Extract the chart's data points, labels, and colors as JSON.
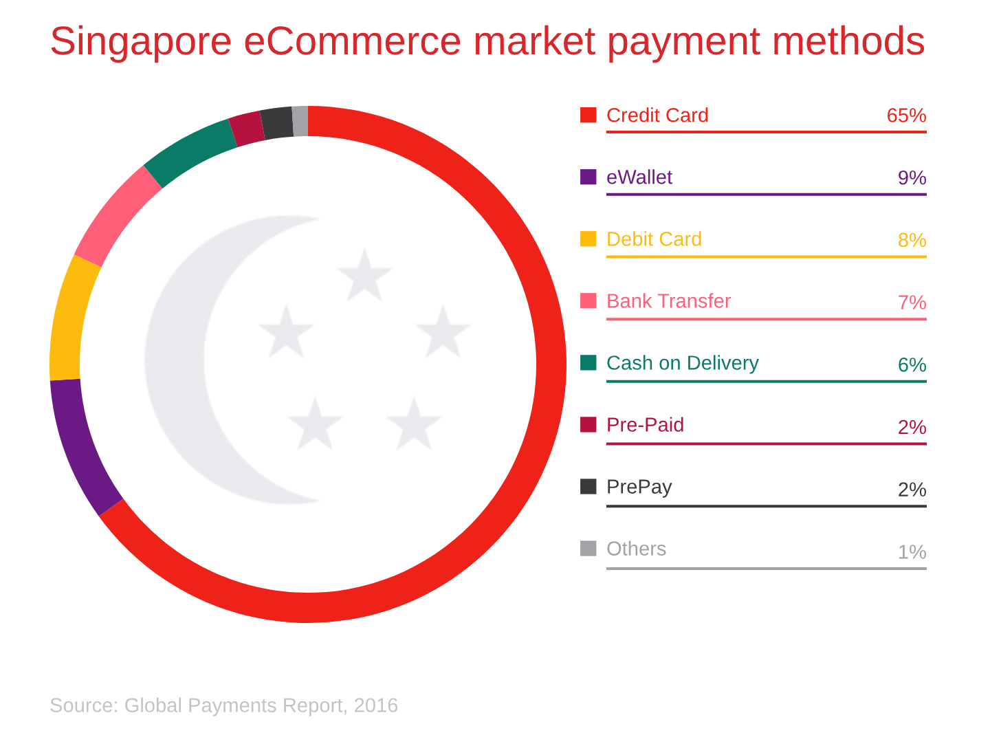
{
  "chart_data": {
    "type": "donut",
    "title": "Singapore eCommerce market payment methods",
    "categories": [
      "Credit Card",
      "eWallet",
      "Debit Card",
      "Bank Transfer",
      "Cash on Delivery",
      "Pre-Paid",
      "PrePay",
      "Others"
    ],
    "values": [
      65,
      9,
      8,
      7,
      6,
      2,
      2,
      1
    ],
    "colors": [
      "#ee2219",
      "#6b1a85",
      "#fcbb0d",
      "#fd6078",
      "#0b7b67",
      "#b5133e",
      "#3a3a3d",
      "#a3a3a7"
    ],
    "value_labels": [
      "65%",
      "9%",
      "8%",
      "7%",
      "6%",
      "2%",
      "2%",
      "1%"
    ],
    "legend": "right",
    "annotations": [
      "Source: Global Payments Report, 2016"
    ]
  }
}
